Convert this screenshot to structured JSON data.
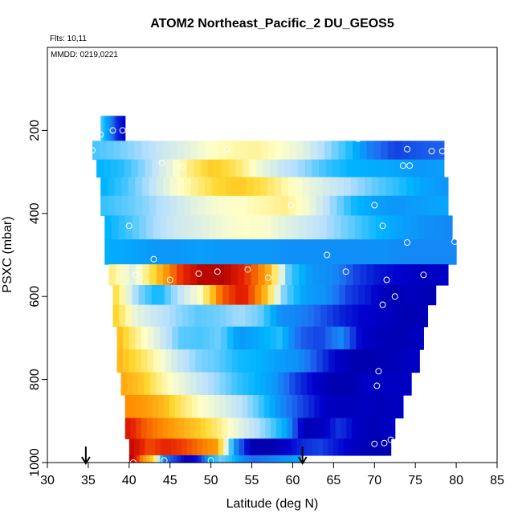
{
  "chart_data": {
    "type": "heatmap",
    "title": "ATOM2 Northeast_Pacific_2 DU_GEOS5",
    "annotations": {
      "flights": "Flts: 10,11",
      "dates": "MMDD: 0219,0221"
    },
    "xlabel": "Latitude (deg N)",
    "ylabel": "PSXC (mbar)",
    "xlim": [
      30,
      85
    ],
    "ylim": [
      1000,
      0
    ],
    "x_ticks": [
      30,
      35,
      40,
      45,
      50,
      55,
      60,
      65,
      70,
      75,
      80,
      85
    ],
    "y_ticks": [
      200,
      400,
      600,
      800,
      1000
    ],
    "grid": false,
    "colormap": [
      "#00008b",
      "#0000cd",
      "#1e6cf0",
      "#00b4ff",
      "#b8e0ff",
      "#ffffc8",
      "#ffd830",
      "#ff8c00",
      "#e62000",
      "#b00000"
    ],
    "arrows_latitude": [
      34.7,
      61.2
    ],
    "rows": [
      {
        "p": 200,
        "lat_min": 36.5,
        "lat_max": 39.5,
        "values": [
          3.5,
          2.6,
          1.4,
          1.0
        ]
      },
      {
        "p": 250,
        "lat_min": 35.5,
        "lat_max": 78.5,
        "values": [
          3.4,
          3.6,
          3.9,
          4.3,
          4.6,
          5.0,
          5.2,
          5.3,
          5.0,
          4.6,
          3.9,
          3.2,
          2.2,
          1.6,
          1.8,
          1.9
        ]
      },
      {
        "p": 290,
        "lat_min": 36.0,
        "lat_max": 78.5,
        "values": [
          3.0,
          3.2,
          3.8,
          4.6,
          5.5,
          6.2,
          5.7,
          4.8,
          4.2,
          3.8,
          3.3,
          3.0,
          2.9,
          2.8,
          2.6,
          2.7
        ]
      },
      {
        "p": 335,
        "lat_min": 36.5,
        "lat_max": 79.0,
        "values": [
          3.0,
          3.4,
          4.0,
          4.8,
          5.4,
          6.0,
          6.2,
          5.8,
          5.2,
          4.7,
          4.3,
          3.9,
          3.5,
          3.2,
          2.8,
          2.6
        ]
      },
      {
        "p": 380,
        "lat_min": 36.5,
        "lat_max": 79.0,
        "values": [
          3.3,
          3.5,
          3.8,
          4.2,
          4.6,
          4.9,
          5.0,
          5.2,
          5.4,
          4.8,
          3.9,
          3.1,
          2.7,
          2.6,
          2.7,
          2.8
        ]
      },
      {
        "p": 430,
        "lat_min": 37.0,
        "lat_max": 79.5,
        "values": [
          3.0,
          3.4,
          3.9,
          4.3,
          4.5,
          4.8,
          5.0,
          4.9,
          4.5,
          4.2,
          3.8,
          3.4,
          3.0,
          2.7,
          2.5,
          2.4
        ]
      },
      {
        "p": 495,
        "lat_min": 37.0,
        "lat_max": 80.0,
        "values": [
          2.9,
          2.8,
          2.6,
          2.6,
          2.7,
          2.6,
          2.6,
          2.6,
          2.5,
          2.5,
          2.5,
          2.5,
          2.5,
          2.4,
          2.4,
          2.4
        ]
      },
      {
        "p": 550,
        "lat_min": 37.5,
        "lat_max": 79.0,
        "values": [
          5.4,
          4.5,
          6.2,
          7.7,
          8.8,
          8.9,
          7.9,
          6.7,
          3.4,
          2.6,
          2.4,
          1.6,
          1.2,
          1.0,
          0.8,
          0.9
        ]
      },
      {
        "p": 595,
        "lat_min": 38.0,
        "lat_max": 77.5,
        "values": [
          5.8,
          3.8,
          3.0,
          4.1,
          5.0,
          7.4,
          8.2,
          6.6,
          3.6,
          2.7,
          2.5,
          1.6,
          1.2,
          0.6,
          0.8,
          0.6
        ]
      },
      {
        "p": 645,
        "lat_min": 38.0,
        "lat_max": 76.5,
        "values": [
          6.0,
          4.6,
          4.2,
          3.8,
          3.5,
          3.6,
          3.9,
          3.6,
          2.5,
          2.3,
          1.8,
          1.3,
          1.0,
          0.8,
          0.6,
          0.7
        ]
      },
      {
        "p": 700,
        "lat_min": 38.5,
        "lat_max": 76.0,
        "values": [
          6.3,
          5.2,
          4.4,
          3.5,
          3.4,
          3.6,
          2.6,
          2.9,
          3.2,
          1.9,
          1.6,
          2.4,
          1.0,
          0.7,
          0.6,
          0.8
        ]
      },
      {
        "p": 755,
        "lat_min": 38.5,
        "lat_max": 75.5,
        "values": [
          6.4,
          5.8,
          5.0,
          4.2,
          3.7,
          3.5,
          3.1,
          3.0,
          2.7,
          2.5,
          1.7,
          0.9,
          0.5,
          0.6,
          0.7,
          0.9
        ]
      },
      {
        "p": 810,
        "lat_min": 39.0,
        "lat_max": 74.5,
        "values": [
          6.6,
          6.2,
          5.3,
          4.7,
          4.2,
          3.8,
          3.3,
          3.0,
          2.6,
          1.6,
          1.0,
          0.6,
          0.6,
          0.9,
          0.8,
          0.8
        ]
      },
      {
        "p": 865,
        "lat_min": 39.5,
        "lat_max": 73.5,
        "values": [
          7.0,
          6.8,
          6.4,
          5.6,
          5.0,
          4.6,
          4.2,
          3.6,
          2.8,
          2.0,
          1.4,
          0.8,
          0.7,
          0.8,
          0.7,
          0.8
        ]
      },
      {
        "p": 920,
        "lat_min": 39.5,
        "lat_max": 72.5,
        "values": [
          8.2,
          7.4,
          7.0,
          6.6,
          6.2,
          5.6,
          4.8,
          4.2,
          3.6,
          2.8,
          0.6,
          0.8,
          1.5,
          0.9,
          0.6,
          0.9
        ]
      },
      {
        "p": 965,
        "lat_min": 40.0,
        "lat_max": 72.0,
        "values": [
          8.6,
          7.6,
          8.0,
          7.7,
          7.2,
          6.8,
          2.6,
          0.6,
          0.5,
          0.9,
          1.4,
          1.6,
          1.2,
          0.8,
          0.6,
          0.6
        ]
      },
      {
        "p": 1000,
        "lat_min": 40.0,
        "lat_max": 61.0,
        "values": [
          9.0,
          7.0,
          6.0,
          2.2,
          1.6,
          0.8,
          1.2,
          2.8,
          3.6,
          3.2,
          2.4,
          2.0,
          2.2,
          2.4,
          2.6,
          2.8
        ]
      }
    ],
    "points": [
      [
        35.5,
        248
      ],
      [
        36.5,
        210
      ],
      [
        38.0,
        200
      ],
      [
        39.2,
        200
      ],
      [
        44.0,
        278
      ],
      [
        46.5,
        288
      ],
      [
        52.0,
        245
      ],
      [
        68.0,
        220
      ],
      [
        74.0,
        245
      ],
      [
        77.0,
        250
      ],
      [
        78.3,
        250
      ],
      [
        73.5,
        285
      ],
      [
        74.3,
        285
      ],
      [
        70.0,
        380
      ],
      [
        59.8,
        380
      ],
      [
        40.0,
        430
      ],
      [
        71.0,
        430
      ],
      [
        43.0,
        510
      ],
      [
        64.2,
        500
      ],
      [
        74.0,
        470
      ],
      [
        79.8,
        468
      ],
      [
        40.8,
        548
      ],
      [
        45.0,
        560
      ],
      [
        48.5,
        545
      ],
      [
        50.8,
        540
      ],
      [
        54.5,
        535
      ],
      [
        57.0,
        555
      ],
      [
        66.5,
        540
      ],
      [
        71.5,
        560
      ],
      [
        76.0,
        548
      ],
      [
        72.5,
        600
      ],
      [
        71.0,
        620
      ],
      [
        70.5,
        780
      ],
      [
        70.3,
        815
      ],
      [
        70.0,
        955
      ],
      [
        71.2,
        953
      ],
      [
        72.0,
        945
      ],
      [
        40.5,
        1000
      ],
      [
        44.3,
        995
      ],
      [
        50.0,
        995
      ]
    ]
  }
}
